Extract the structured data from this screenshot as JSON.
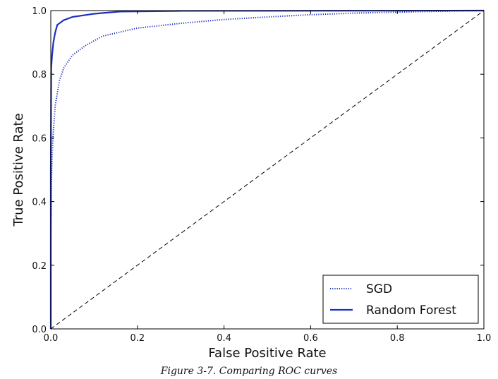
{
  "caption": "Figure 3-7. Comparing ROC curves",
  "chart_data": {
    "type": "line",
    "xlabel": "False Positive Rate",
    "ylabel": "True Positive Rate",
    "xlim": [
      0,
      1
    ],
    "ylim": [
      0,
      1
    ],
    "x_ticks": [
      "0.0",
      "0.2",
      "0.4",
      "0.6",
      "0.8",
      "1.0"
    ],
    "y_ticks": [
      "0.0",
      "0.2",
      "0.4",
      "0.6",
      "0.8",
      "1.0"
    ],
    "grid": false,
    "legend_position": "lower-right",
    "series": [
      {
        "name": "SGD",
        "style": "dotted",
        "color": "#1f2fbf",
        "points": [
          [
            0,
            0
          ],
          [
            0,
            0.28
          ],
          [
            0.002,
            0.5
          ],
          [
            0.005,
            0.6
          ],
          [
            0.01,
            0.7
          ],
          [
            0.02,
            0.78
          ],
          [
            0.03,
            0.82
          ],
          [
            0.05,
            0.86
          ],
          [
            0.08,
            0.89
          ],
          [
            0.12,
            0.92
          ],
          [
            0.2,
            0.945
          ],
          [
            0.3,
            0.96
          ],
          [
            0.4,
            0.972
          ],
          [
            0.5,
            0.98
          ],
          [
            0.6,
            0.987
          ],
          [
            0.7,
            0.992
          ],
          [
            0.8,
            0.995
          ],
          [
            0.9,
            0.998
          ],
          [
            1,
            1
          ]
        ]
      },
      {
        "name": "Random Forest",
        "style": "solid",
        "color": "#1f2fbf",
        "points": [
          [
            0,
            0
          ],
          [
            0,
            0.5
          ],
          [
            0.001,
            0.82
          ],
          [
            0.003,
            0.86
          ],
          [
            0.006,
            0.9
          ],
          [
            0.01,
            0.93
          ],
          [
            0.015,
            0.955
          ],
          [
            0.03,
            0.97
          ],
          [
            0.05,
            0.98
          ],
          [
            0.1,
            0.99
          ],
          [
            0.16,
            0.997
          ],
          [
            0.3,
            0.999
          ],
          [
            1,
            1
          ]
        ]
      },
      {
        "name": "",
        "style": "dashed",
        "color": "#000000",
        "points": [
          [
            0,
            0
          ],
          [
            1,
            1
          ]
        ]
      }
    ]
  }
}
